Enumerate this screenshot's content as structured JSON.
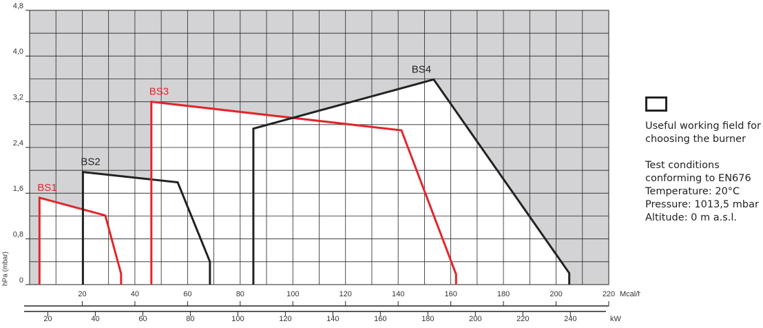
{
  "chart_data": {
    "type": "line",
    "y_label": "hPa (mbar)",
    "x_label": "Mcal/h",
    "x2_label": "kW",
    "xlim": [
      0,
      220
    ],
    "xticks": [
      20,
      40,
      60,
      80,
      100,
      120,
      140,
      160,
      180,
      200,
      220
    ],
    "x_gridlines": [
      10,
      20,
      30,
      40,
      50,
      60,
      70,
      80,
      90,
      100,
      110,
      120,
      130,
      140,
      150,
      160,
      170,
      180,
      190,
      200,
      210
    ],
    "x2lim": [
      10,
      255
    ],
    "x2ticks": [
      20,
      40,
      60,
      80,
      100,
      120,
      140,
      160,
      180,
      200,
      220,
      240
    ],
    "ylim": [
      0,
      4.8
    ],
    "yticks": [
      0,
      {
        "value": 0.8,
        "label": "0,8"
      },
      {
        "value": 1.6,
        "label": "1,6"
      },
      {
        "value": 2.4,
        "label": "2,4"
      },
      {
        "value": 3.2,
        "label": "3,2"
      },
      {
        "value": 4.0,
        "label": "4,0"
      },
      {
        "value": 4.8,
        "label": "4,8"
      }
    ],
    "y_gridlines": [
      0.4,
      0.8,
      1.2,
      1.6,
      2.0,
      2.4,
      2.8,
      3.2,
      3.6,
      4.0,
      4.4
    ],
    "grid": true,
    "series": [
      {
        "name": "BS1",
        "color": "#e2262b",
        "x": [
          3.75,
          3.75,
          28.75,
          34.75,
          34.75
        ],
        "values": [
          0,
          1.52,
          1.21,
          0.19,
          0
        ]
      },
      {
        "name": "BS2",
        "color": "#222222",
        "x": [
          20.25,
          20.25,
          56.25,
          68.5,
          68.5
        ],
        "values": [
          0,
          1.97,
          1.79,
          0.4,
          0
        ]
      },
      {
        "name": "BS3",
        "color": "#e2262b",
        "x": [
          46.25,
          46.25,
          141.25,
          162,
          162
        ],
        "values": [
          0,
          3.2,
          2.7,
          0.18,
          0
        ]
      },
      {
        "name": "BS4",
        "color": "#222222",
        "x": [
          85,
          85,
          153.5,
          205,
          205
        ],
        "values": [
          0,
          2.73,
          3.59,
          0.2,
          0
        ]
      }
    ],
    "legend": {
      "label": "Useful working field for choosing the burner"
    },
    "notes": [
      "Test conditions conforming to EN676",
      "Temperature: 20°C",
      "Pressure: 1013,5 mbar",
      "Altitude: 0 m a.s.l."
    ]
  }
}
